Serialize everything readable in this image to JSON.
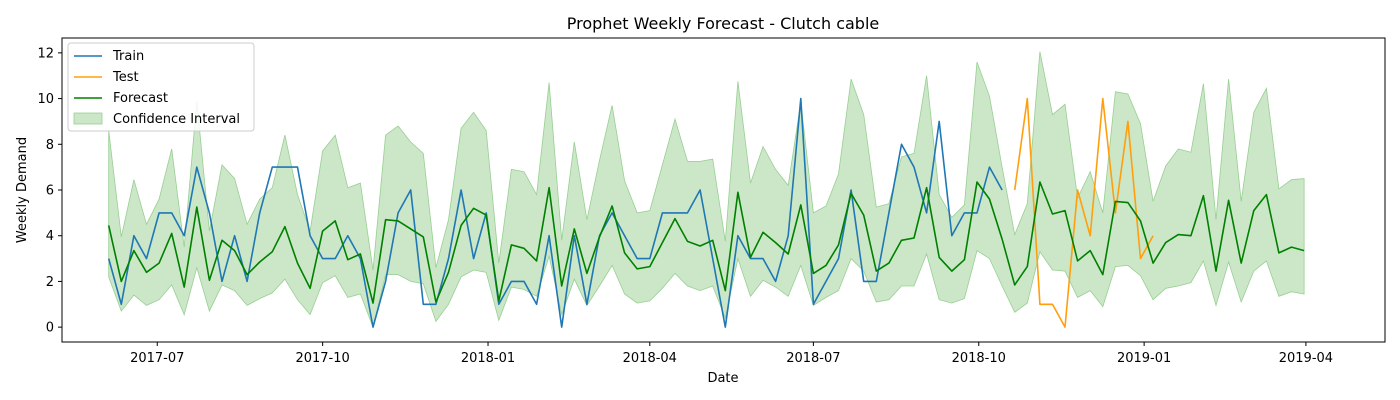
{
  "chart_data": {
    "type": "line",
    "title": "Prophet Weekly Forecast - Clutch cable",
    "xlabel": "Date",
    "ylabel": "Weekly Demand",
    "xlim": [
      "2017-05-09",
      "2019-05-15"
    ],
    "ylim": [
      -0.65,
      12.65
    ],
    "xticks": [
      {
        "date": "2017-07-01",
        "label": "2017-07"
      },
      {
        "date": "2017-10-01",
        "label": "2017-10"
      },
      {
        "date": "2018-01-01",
        "label": "2018-01"
      },
      {
        "date": "2018-04-01",
        "label": "2018-04"
      },
      {
        "date": "2018-07-01",
        "label": "2018-07"
      },
      {
        "date": "2018-10-01",
        "label": "2018-10"
      },
      {
        "date": "2019-01-01",
        "label": "2019-01"
      },
      {
        "date": "2019-04-01",
        "label": "2019-04"
      }
    ],
    "yticks": [
      0,
      2,
      4,
      6,
      8,
      10,
      12
    ],
    "grid": false,
    "legend_position": "top-left",
    "weeks": {
      "start": "2017-06-04",
      "interval_days": 7
    },
    "series": [
      {
        "name": "Train",
        "color": "#1f77b4",
        "start_week": 0,
        "values": [
          3,
          1,
          4,
          3,
          5,
          5,
          4,
          7,
          5,
          2,
          4,
          2,
          5,
          7,
          7,
          7,
          4,
          3,
          3,
          4,
          3,
          0,
          2,
          5,
          6,
          1,
          1,
          3,
          6,
          3,
          5,
          1,
          2,
          2,
          1,
          4,
          0,
          4,
          1,
          4,
          5,
          4,
          3,
          3,
          5,
          5,
          5,
          6,
          3,
          0,
          4,
          3,
          3,
          2,
          4,
          10,
          1,
          2,
          3,
          6,
          2,
          2,
          5,
          8,
          7,
          5,
          9,
          4,
          5,
          5,
          7,
          6
        ]
      },
      {
        "name": "Test",
        "color": "#ff9f0e",
        "start_week": 72,
        "values": [
          6,
          10,
          1,
          1,
          0,
          6,
          4,
          10,
          5,
          9,
          3,
          4
        ]
      },
      {
        "name": "Forecast",
        "color": "#008000",
        "start_week": 0,
        "values": [
          4.45,
          2.0,
          3.35,
          2.4,
          2.8,
          4.1,
          1.75,
          5.25,
          2.05,
          3.8,
          3.35,
          2.3,
          2.85,
          3.3,
          4.4,
          2.8,
          1.7,
          4.2,
          4.65,
          2.95,
          3.2,
          1.05,
          4.7,
          4.65,
          4.3,
          3.95,
          1.1,
          2.4,
          4.45,
          5.2,
          4.9,
          1.15,
          3.6,
          3.45,
          2.9,
          6.1,
          1.8,
          4.3,
          2.35,
          3.95,
          5.3,
          3.25,
          2.55,
          2.65,
          3.7,
          4.75,
          3.75,
          3.55,
          3.8,
          1.6,
          5.9,
          3.05,
          4.15,
          3.7,
          3.2,
          5.35,
          2.35,
          2.7,
          3.6,
          5.85,
          4.9,
          2.45,
          2.8,
          3.8,
          3.9,
          6.1,
          3.05,
          2.45,
          2.95,
          6.35,
          5.6,
          3.85,
          1.85,
          2.65,
          6.35,
          4.95,
          5.1,
          2.9,
          3.35,
          2.3,
          5.5,
          5.45,
          4.65,
          2.8,
          3.7,
          4.05,
          4.0,
          5.75,
          2.45,
          5.55,
          2.8,
          5.1,
          5.8,
          3.25,
          3.5,
          3.35
        ]
      }
    ],
    "confidence_interval": {
      "name": "Confidence Interval",
      "color": "#98cf92",
      "start_week": 0,
      "upper": [
        8.6,
        3.95,
        6.45,
        4.5,
        5.6,
        7.8,
        3.5,
        9.9,
        4.2,
        7.1,
        6.5,
        4.5,
        5.6,
        6.1,
        8.4,
        5.8,
        4.2,
        7.7,
        8.4,
        6.1,
        6.3,
        2.5,
        8.4,
        8.8,
        8.1,
        7.6,
        2.6,
        4.7,
        8.7,
        9.4,
        8.6,
        2.8,
        6.9,
        6.8,
        5.8,
        10.7,
        3.8,
        8.1,
        4.7,
        7.3,
        9.7,
        6.4,
        5.0,
        5.1,
        7.1,
        9.1,
        7.25,
        7.25,
        7.35,
        3.75,
        10.75,
        6.3,
        7.9,
        6.9,
        6.2,
        9.85,
        5.0,
        5.3,
        6.7,
        10.85,
        9.3,
        5.25,
        5.4,
        7.45,
        7.6,
        11.0,
        5.8,
        4.8,
        5.35,
        11.6,
        10.1,
        7.0,
        4.05,
        5.4,
        12.05,
        9.3,
        9.75,
        5.65,
        6.8,
        5.0,
        10.3,
        10.2,
        8.9,
        5.5,
        7.05,
        7.8,
        7.65,
        10.65,
        4.7,
        10.85,
        5.5,
        9.4,
        10.45,
        6.05,
        6.45,
        6.5
      ],
      "lower": [
        2.2,
        0.7,
        1.4,
        0.95,
        1.2,
        1.85,
        0.55,
        2.6,
        0.7,
        1.85,
        1.6,
        0.95,
        1.25,
        1.5,
        2.1,
        1.2,
        0.55,
        1.95,
        2.25,
        1.3,
        1.45,
        0.0,
        2.3,
        2.3,
        2.0,
        1.9,
        0.25,
        1.0,
        2.2,
        2.5,
        2.4,
        0.3,
        1.75,
        1.65,
        1.35,
        3.1,
        0.55,
        2.1,
        0.95,
        1.8,
        2.7,
        1.45,
        1.05,
        1.15,
        1.7,
        2.35,
        1.8,
        1.6,
        1.8,
        0.4,
        3.0,
        1.35,
        2.05,
        1.75,
        1.35,
        2.7,
        0.95,
        1.3,
        1.6,
        3.0,
        2.45,
        1.1,
        1.2,
        1.8,
        1.8,
        3.2,
        1.2,
        1.05,
        1.25,
        3.35,
        3.0,
        1.8,
        0.65,
        1.05,
        3.3,
        2.5,
        2.45,
        1.3,
        1.6,
        0.9,
        2.65,
        2.7,
        2.25,
        1.2,
        1.7,
        1.8,
        1.95,
        2.9,
        0.95,
        2.85,
        1.1,
        2.45,
        2.9,
        1.35,
        1.55,
        1.45
      ]
    }
  }
}
